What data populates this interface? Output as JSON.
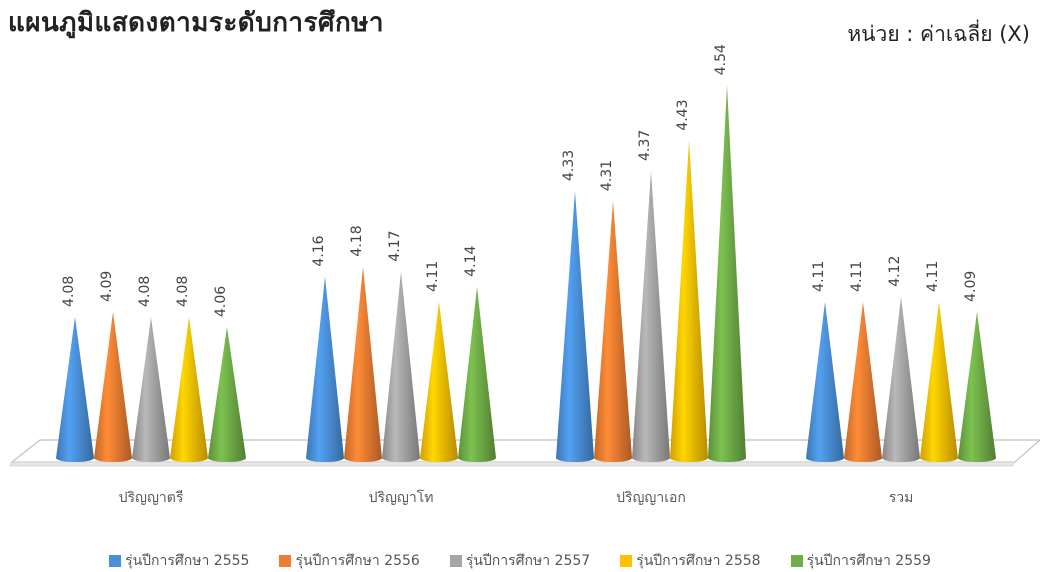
{
  "title": "แผนภูมิแสดงตามระดับการศึกษา",
  "unit_label": "หน่วย : ค่าเฉลี่ย (X)",
  "chart_data": {
    "type": "bar",
    "categories": [
      "ปริญญาตรี",
      "ปริญญาโท",
      "ปริญญาเอก",
      "รวม"
    ],
    "series": [
      {
        "name": "รุ่นปีการศึกษา 2555",
        "color": "#4a90d9",
        "values": [
          4.08,
          4.16,
          4.33,
          4.11
        ]
      },
      {
        "name": "รุ่นปีการศึกษา 2556",
        "color": "#ed7d31",
        "values": [
          4.09,
          4.18,
          4.31,
          4.11
        ]
      },
      {
        "name": "รุ่นปีการศึกษา 2557",
        "color": "#a5a5a5",
        "values": [
          4.08,
          4.17,
          4.37,
          4.12
        ]
      },
      {
        "name": "รุ่นปีการศึกษา 2558",
        "color": "#ffc000",
        "values": [
          4.08,
          4.11,
          4.43,
          4.11
        ]
      },
      {
        "name": "รุ่นปีการศึกษา 2559",
        "color": "#70ad47",
        "values": [
          4.06,
          4.14,
          4.54,
          4.09
        ]
      }
    ],
    "ylim": [
      3.8,
      4.6
    ],
    "grid": false,
    "legend_position": "bottom",
    "data_labels": true
  }
}
